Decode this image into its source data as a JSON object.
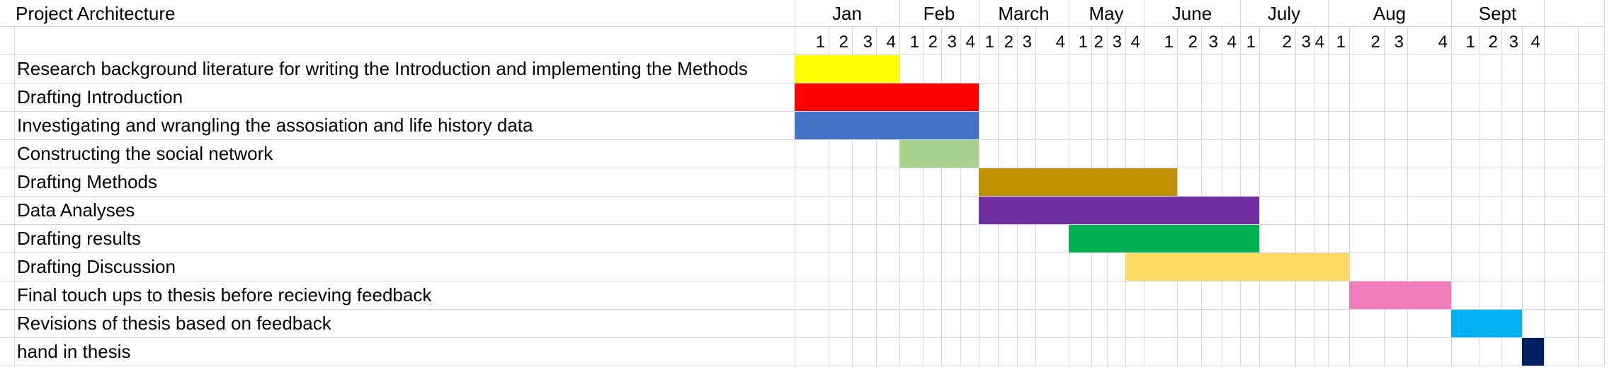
{
  "chart_data": {
    "type": "gantt",
    "title": "Project Architecture",
    "months": [
      "Jan",
      "Feb",
      "March",
      "May",
      "June",
      "July",
      "Aug",
      "Sept"
    ],
    "week_labels": [
      "1",
      "2",
      "3",
      "4",
      "1",
      "2",
      "3",
      "4",
      "1",
      "2",
      "3",
      "4",
      "1",
      "2",
      "3",
      "4",
      "1",
      "2",
      "3",
      "4",
      "1",
      "2",
      "3",
      "4",
      "1",
      "2",
      "3",
      "4",
      "1",
      "2",
      "3",
      "4"
    ],
    "tasks": [
      {
        "label": "Research background literature for writing the Introduction and implementing the Methods",
        "start_week": 1,
        "end_week": 4,
        "color": "#ffff00"
      },
      {
        "label": "Drafting Introduction",
        "start_week": 1,
        "end_week": 8,
        "color": "#ff0000"
      },
      {
        "label": "Investigating and wrangling the assosiation and life history data",
        "start_week": 1,
        "end_week": 8,
        "color": "#4472c4"
      },
      {
        "label": "Constructing the social network",
        "start_week": 5,
        "end_week": 8,
        "color": "#a9d18e"
      },
      {
        "label": "Drafting Methods",
        "start_week": 9,
        "end_week": 17,
        "color": "#bf9000"
      },
      {
        "label": "Data Analyses",
        "start_week": 9,
        "end_week": 21,
        "color": "#7030a0"
      },
      {
        "label": "Drafting results",
        "start_week": 13,
        "end_week": 21,
        "color": "#00b050"
      },
      {
        "label": "Drafting Discussion",
        "start_week": 16,
        "end_week": 25,
        "color": "#ffd966"
      },
      {
        "label": "Final touch ups to  thesis before recieving feedback",
        "start_week": 26,
        "end_week": 28,
        "color": "#f27dbd"
      },
      {
        "label": "Revisions of thesis based on feedback",
        "start_week": 29,
        "end_week": 31,
        "color": "#00b0f0"
      },
      {
        "label": "hand in thesis",
        "start_week": 32,
        "end_week": 32,
        "color": "#002060"
      }
    ]
  }
}
